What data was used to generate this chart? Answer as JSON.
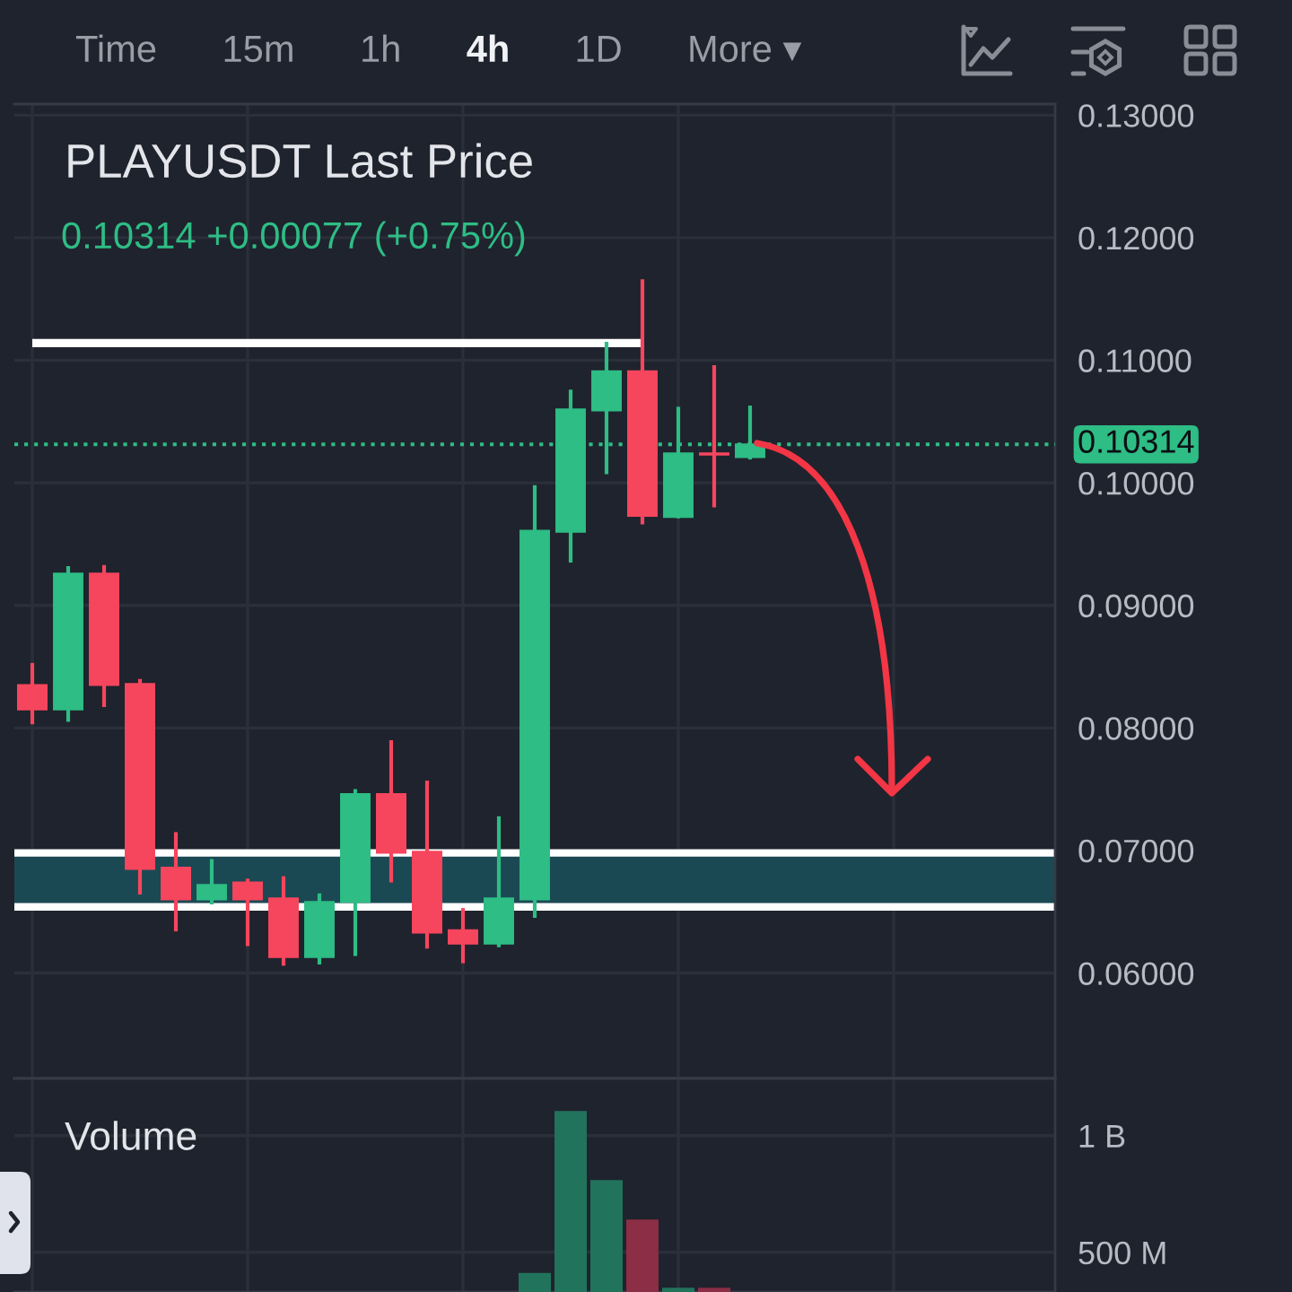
{
  "chart_data": [
    {
      "type": "candlestick",
      "title": "PLAYUSDT Last Price",
      "subtitle": "0.10314 +0.00077 (+0.75%)",
      "annotations": [
        "Time",
        "15m",
        "1h",
        "4h",
        "1D",
        "More ▾"
      ],
      "categories": [
        null,
        null,
        null,
        null,
        null,
        null,
        null,
        null,
        null,
        null,
        null,
        null,
        null,
        null,
        null,
        null,
        null,
        null,
        null,
        null,
        null,
        null,
        null,
        null,
        null,
        null,
        null,
        null,
        null
      ],
      "ohlc": [
        [
          0.0835,
          0.0853,
          0.0803,
          0.0815
        ],
        [
          0.0815,
          0.0932,
          0.0805,
          0.0926
        ],
        [
          0.0926,
          0.0933,
          0.0817,
          0.0835
        ],
        [
          0.0836,
          0.084,
          0.0664,
          0.0685
        ],
        [
          0.0686,
          0.0715,
          0.0634,
          0.066
        ],
        [
          0.066,
          0.0693,
          0.0656,
          0.0672
        ],
        [
          0.0674,
          0.0677,
          0.0622,
          0.066
        ],
        [
          0.0661,
          0.0679,
          0.0606,
          0.0613
        ],
        [
          0.0613,
          0.0665,
          0.0607,
          0.0658
        ],
        [
          0.0658,
          0.075,
          0.0614,
          0.0746
        ],
        [
          0.0746,
          0.079,
          0.0674,
          0.0698
        ],
        [
          0.0699,
          0.0757,
          0.062,
          0.0633
        ],
        [
          0.0635,
          0.0653,
          0.0608,
          0.0624
        ],
        [
          0.0624,
          0.0728,
          0.0621,
          0.0661
        ],
        [
          0.066,
          0.0998,
          0.0645,
          0.0961
        ],
        [
          0.096,
          0.1076,
          0.0935,
          0.106
        ],
        [
          0.1059,
          0.1115,
          0.1007,
          0.1091
        ],
        [
          0.1091,
          0.1166,
          0.0966,
          0.0973
        ],
        [
          0.0972,
          0.1062,
          0.0971,
          0.1024
        ],
        [
          0.1024,
          0.1096,
          0.098,
          0.1023
        ],
        [
          0.1021,
          0.1063,
          0.1019,
          0.10314
        ],
        null,
        null,
        null,
        null,
        null,
        null,
        null,
        null
      ],
      "colors": [
        "#f6465d",
        "#2ebd85",
        "#f6465d",
        "#f6465d",
        "#f6465d",
        "#2ebd85",
        "#f6465d",
        "#f6465d",
        "#2ebd85",
        "#2ebd85",
        "#f6465d",
        "#f6465d",
        "#f6465d",
        "#2ebd85",
        "#2ebd85",
        "#2ebd85",
        "#2ebd85",
        "#f6465d",
        "#2ebd85",
        "#f6465d",
        "#2ebd85",
        null,
        null,
        null,
        null,
        null,
        null,
        null,
        null
      ],
      "series": [
        {
          "type": "line",
          "color": "#ffffff",
          "values": [
            0.1114,
            0.1114,
            0.1114,
            0.1114,
            0.1114,
            0.1114,
            0.1114,
            0.1114,
            0.1114,
            0.1114,
            0.1114,
            0.1114,
            0.1114,
            0.1114,
            0.1114,
            0.1114,
            0.1114,
            0.1114,
            null,
            null,
            null,
            null,
            null,
            null,
            null,
            null,
            null,
            null,
            null
          ]
        }
      ],
      "ylim": [
        0.0514,
        0.1309
      ],
      "yticks": [
        {
          "value": 0.06,
          "label": "0.06000"
        },
        {
          "value": 0.07,
          "label": "0.07000"
        },
        {
          "value": 0.08,
          "label": "0.08000"
        },
        {
          "value": 0.09,
          "label": "0.09000"
        },
        {
          "value": 0.1,
          "label": "0.10000"
        },
        {
          "value": 0.11,
          "label": "0.11000"
        },
        {
          "value": 0.12,
          "label": "0.12000"
        },
        {
          "value": 0.13,
          "label": "0.13000"
        }
      ],
      "ref_lines": [
        {
          "axis": "y",
          "value": 0.10314,
          "label": "0.10314",
          "color": "#2ebd85",
          "line_style": "dotted"
        }
      ],
      "bands": [
        {
          "axis": "y",
          "from": 0.0654,
          "to": 0.0698,
          "color": "#1b4953"
        }
      ],
      "grid": true,
      "tick_labels": "y"
    },
    {
      "type": "bar",
      "title": "Volume",
      "categories": [
        null,
        null,
        null,
        null,
        null,
        null,
        null,
        null,
        null,
        null,
        null,
        null,
        null,
        null,
        null,
        null,
        null,
        null,
        null,
        null,
        null,
        null,
        null,
        null,
        null,
        null,
        null,
        null,
        null
      ],
      "values": [
        null,
        null,
        null,
        null,
        null,
        null,
        null,
        null,
        null,
        null,
        null,
        null,
        null,
        null,
        412000000,
        1106000000,
        810000000,
        640000000,
        348000000,
        348000000,
        null,
        null,
        null,
        null,
        null,
        null,
        null,
        null,
        null
      ],
      "colors": [
        "#8b2e46",
        "#22735c",
        "#8b2e46",
        "#8b2e46",
        "#8b2e46",
        "#22735c",
        "#8b2e46",
        "#8b2e46",
        "#22735c",
        "#22735c",
        "#8b2e46",
        "#8b2e46",
        "#8b2e46",
        "#22735c",
        "#22735c",
        "#22735c",
        "#22735c",
        "#8b2e46",
        "#22735c",
        "#8b2e46",
        "#22735c",
        null,
        null,
        null,
        null,
        null,
        null,
        null,
        null
      ],
      "ylim": [
        330000000,
        1245000000
      ],
      "yticks": [
        {
          "value": 500000000,
          "label": "500 M"
        },
        {
          "value": 1000000000,
          "label": "1 B"
        }
      ],
      "grid": true,
      "tick_labels": "y"
    }
  ]
}
